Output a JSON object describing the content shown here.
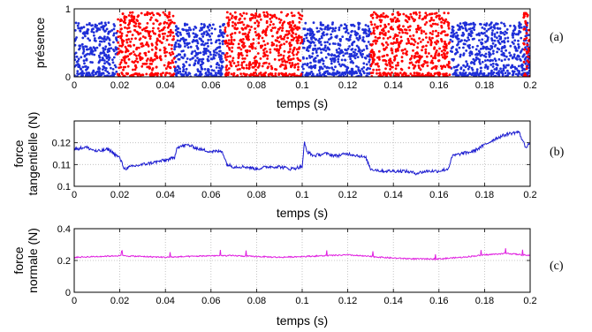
{
  "chart_data": [
    {
      "type": "scatter",
      "panel": "(a)",
      "xlabel": "temps (s)",
      "ylabel": "présence",
      "xlim": [
        0,
        0.2
      ],
      "ylim": [
        0,
        1
      ],
      "xticks": [
        "0",
        "0.02",
        "0.04",
        "0.06",
        "0.08",
        "0.1",
        "0.12",
        "0.14",
        "0.16",
        "0.18",
        "0.2"
      ],
      "yticks": [
        "0",
        "1"
      ],
      "grid": true,
      "series": [
        {
          "color": "#1f2fd8",
          "segments": [
            [
              0,
              0.019
            ],
            [
              0.044,
              0.066
            ],
            [
              0.1,
              0.13
            ],
            [
              0.165,
              0.2
            ]
          ],
          "value_range": [
            0.05,
            0.8
          ]
        },
        {
          "color": "#ff0000",
          "segments": [
            [
              0.019,
              0.044
            ],
            [
              0.066,
              0.1
            ],
            [
              0.13,
              0.165
            ],
            [
              0.197,
              0.2
            ]
          ],
          "value_range": [
            0.1,
            0.95
          ]
        }
      ]
    },
    {
      "type": "line",
      "panel": "(b)",
      "xlabel": "temps (s)",
      "ylabel_lines": [
        "force",
        "tangentielle (N)"
      ],
      "xlim": [
        0,
        0.2
      ],
      "ylim": [
        0.1,
        0.13
      ],
      "xticks": [
        "0",
        "0.02",
        "0.04",
        "0.06",
        "0.08",
        "0.1",
        "0.12",
        "0.14",
        "0.16",
        "0.18",
        "0.2"
      ],
      "yticks": [
        "0.1",
        "0.11",
        "0.12"
      ],
      "grid": true,
      "color": "#1a1ad0",
      "x": [
        0,
        0.005,
        0.01,
        0.015,
        0.02,
        0.022,
        0.025,
        0.03,
        0.035,
        0.04,
        0.044,
        0.045,
        0.05,
        0.055,
        0.06,
        0.065,
        0.067,
        0.07,
        0.075,
        0.08,
        0.085,
        0.09,
        0.095,
        0.1,
        0.101,
        0.102,
        0.105,
        0.11,
        0.115,
        0.12,
        0.125,
        0.128,
        0.13,
        0.135,
        0.14,
        0.145,
        0.15,
        0.155,
        0.16,
        0.164,
        0.166,
        0.17,
        0.175,
        0.18,
        0.185,
        0.19,
        0.195,
        0.198,
        0.2
      ],
      "y": [
        0.117,
        0.118,
        0.116,
        0.117,
        0.113,
        0.108,
        0.109,
        0.11,
        0.111,
        0.112,
        0.113,
        0.118,
        0.119,
        0.117,
        0.116,
        0.116,
        0.11,
        0.109,
        0.109,
        0.108,
        0.109,
        0.109,
        0.108,
        0.109,
        0.12,
        0.116,
        0.114,
        0.115,
        0.114,
        0.115,
        0.114,
        0.113,
        0.108,
        0.107,
        0.107,
        0.107,
        0.106,
        0.107,
        0.107,
        0.108,
        0.114,
        0.115,
        0.116,
        0.119,
        0.122,
        0.124,
        0.125,
        0.118,
        0.12
      ]
    },
    {
      "type": "line",
      "panel": "(c)",
      "xlabel": "temps (s)",
      "ylabel_lines": [
        "force",
        "normale (N)"
      ],
      "xlim": [
        0,
        0.2
      ],
      "ylim": [
        0,
        0.4
      ],
      "xticks": [
        "0",
        "0.02",
        "0.04",
        "0.06",
        "0.08",
        "0.1",
        "0.12",
        "0.14",
        "0.16",
        "0.18",
        "0.2"
      ],
      "yticks": [
        "0",
        "0.2",
        "0.4"
      ],
      "grid": true,
      "color": "#e020e0",
      "x": [
        0,
        0.01,
        0.02,
        0.03,
        0.04,
        0.05,
        0.06,
        0.07,
        0.08,
        0.09,
        0.1,
        0.11,
        0.12,
        0.13,
        0.14,
        0.15,
        0.16,
        0.17,
        0.18,
        0.19,
        0.2
      ],
      "y": [
        0.22,
        0.225,
        0.23,
        0.225,
        0.22,
        0.225,
        0.23,
        0.23,
        0.225,
        0.22,
        0.225,
        0.23,
        0.235,
        0.225,
        0.215,
        0.21,
        0.21,
        0.22,
        0.235,
        0.245,
        0.23
      ]
    }
  ]
}
